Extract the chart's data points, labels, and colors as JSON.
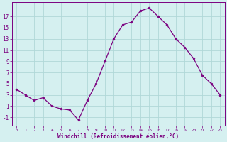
{
  "x": [
    0,
    1,
    2,
    3,
    4,
    5,
    6,
    7,
    8,
    9,
    10,
    11,
    12,
    13,
    14,
    15,
    16,
    17,
    18,
    19,
    20,
    21,
    22,
    23
  ],
  "y": [
    4,
    3,
    2,
    2.5,
    1,
    0.5,
    0.3,
    -1.5,
    2,
    5,
    9,
    13,
    15.5,
    16,
    18,
    18.5,
    17,
    15.5,
    13,
    11.5,
    9.5,
    6.5,
    5,
    3
  ],
  "line_color": "#7b0080",
  "marker": "o",
  "marker_size": 2.0,
  "marker_color": "#7b0080",
  "bg_color": "#d5f0f0",
  "grid_color": "#b0d8d8",
  "xlabel": "Windchill (Refroidissement éolien,°C)",
  "xlabel_color": "#7b0080",
  "ylabel_ticks": [
    -1,
    1,
    3,
    5,
    7,
    9,
    11,
    13,
    15,
    17
  ],
  "xtick_labels": [
    "0",
    "1",
    "2",
    "3",
    "4",
    "5",
    "6",
    "7",
    "8",
    "9",
    "10",
    "11",
    "12",
    "13",
    "14",
    "15",
    "16",
    "17",
    "18",
    "19",
    "20",
    "21",
    "22",
    "23"
  ],
  "ylim": [
    -2.5,
    19.5
  ],
  "xlim": [
    -0.5,
    23.5
  ],
  "tick_color": "#7b0080",
  "font_family": "monospace"
}
